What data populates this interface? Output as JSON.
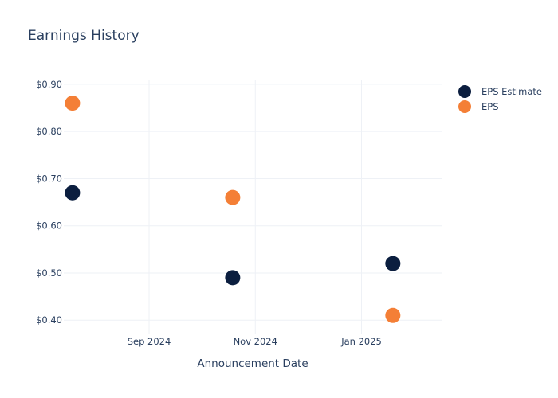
{
  "chart_data": {
    "type": "scatter",
    "title": "Earnings History",
    "xlabel": "Announcement Date",
    "ylabel": "",
    "x_type": "date",
    "xlim": [
      "2024-07-14",
      "2025-02-16"
    ],
    "ylim": [
      0.37,
      0.91
    ],
    "x_ticks": [
      {
        "value": "2024-09-01",
        "label": "Sep 2024"
      },
      {
        "value": "2024-11-01",
        "label": "Nov 2024"
      },
      {
        "value": "2025-01-01",
        "label": "Jan 2025"
      }
    ],
    "y_ticks": [
      {
        "value": 0.4,
        "label": "$0.40"
      },
      {
        "value": 0.5,
        "label": "$0.50"
      },
      {
        "value": 0.6,
        "label": "$0.60"
      },
      {
        "value": 0.7,
        "label": "$0.70"
      },
      {
        "value": 0.8,
        "label": "$0.80"
      },
      {
        "value": 0.9,
        "label": "$0.90"
      }
    ],
    "grid": true,
    "legend_position": "top-right",
    "series": [
      {
        "name": "EPS Estimate",
        "color": "#0b1e3f",
        "points": [
          {
            "x": "2024-07-19",
            "y": 0.67
          },
          {
            "x": "2024-10-19",
            "y": 0.49
          },
          {
            "x": "2025-01-19",
            "y": 0.52
          }
        ]
      },
      {
        "name": "EPS",
        "color": "#f47f36",
        "points": [
          {
            "x": "2024-07-19",
            "y": 0.86
          },
          {
            "x": "2024-10-19",
            "y": 0.66
          },
          {
            "x": "2025-01-19",
            "y": 0.41
          }
        ]
      }
    ]
  }
}
